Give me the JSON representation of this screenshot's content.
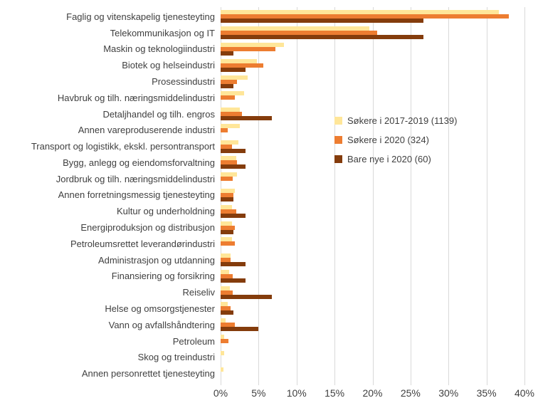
{
  "chart_data": {
    "type": "bar",
    "orientation": "horizontal",
    "title": "",
    "categories": [
      "Faglig og vitenskapelig tjenesteyting",
      "Telekommunikasjon og IT",
      "Maskin og teknologiindustri",
      "Biotek og helseindustri",
      "Prosessindustri",
      "Havbruk og tilh. næringsmiddelindustri",
      "Detaljhandel og tilh. engros",
      "Annen vareproduserende industri",
      "Transport og logistikk, ekskl. persontransport",
      "Bygg, anlegg og eiendomsforvaltning",
      "Jordbruk og tilh. næringsmiddelindustri",
      "Annen forretningsmessig tjenesteyting",
      "Kultur og underholdning",
      "Energiproduksjon og distribusjon",
      "Petroleumsrettet leverandørindustri",
      "Administrasjon og utdanning",
      "Finansiering og forsikring",
      "Reiseliv",
      "Helse og omsorgstjenester",
      "Vann og avfallshåndtering",
      "Petroleum",
      "Skog og treindustri",
      "Annen personrettet tjenesteyting"
    ],
    "series": [
      {
        "name": "Søkere i 2017-2019 (1139)",
        "color": "#FFE699",
        "values": [
          36.6,
          19.6,
          8.3,
          4.8,
          3.6,
          3.1,
          2.5,
          2.5,
          2.3,
          2.1,
          2.2,
          1.9,
          1.5,
          1.5,
          1.5,
          1.3,
          1.1,
          1.2,
          0.9,
          0.7,
          0.5,
          0.5,
          0.4
        ]
      },
      {
        "name": "Søkere i 2020 (324)",
        "color": "#ED7D31",
        "values": [
          37.9,
          20.6,
          7.2,
          5.6,
          2.2,
          1.9,
          2.8,
          0.9,
          1.5,
          2.2,
          1.6,
          1.7,
          2.1,
          1.9,
          1.9,
          1.3,
          1.6,
          1.6,
          1.3,
          1.9,
          1.0,
          0,
          0
        ]
      },
      {
        "name": "Bare nye i 2020 (60)",
        "color": "#843C0C",
        "values": [
          26.7,
          26.7,
          1.7,
          3.3,
          1.7,
          0,
          6.7,
          0,
          3.3,
          3.3,
          0,
          1.7,
          3.3,
          1.7,
          0,
          3.3,
          3.3,
          6.7,
          1.7,
          5.0,
          0,
          0,
          0
        ]
      }
    ],
    "x_axis": {
      "min": 0,
      "max": 40,
      "tick_labels": [
        "0%",
        "5%",
        "10%",
        "15%",
        "20%",
        "25%",
        "30%",
        "35%",
        "40%"
      ]
    },
    "legend_position": "center-right",
    "grid": true,
    "gridline_color": "#d9d9d9",
    "text_color": "#3f3f3f",
    "background_color": "#ffffff"
  }
}
